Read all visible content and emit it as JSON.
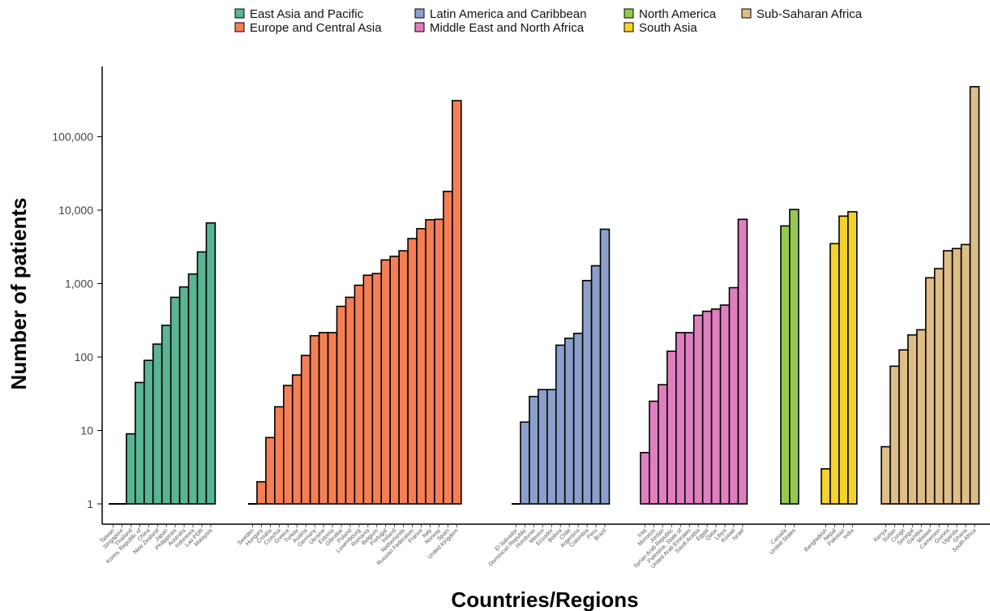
{
  "chart_data": {
    "type": "bar",
    "title": "",
    "xlabel": "Countries/Regions",
    "ylabel": "Number of patients",
    "y_scale": "log",
    "ylim": [
      1,
      700000
    ],
    "y_ticks": [
      1,
      10,
      100,
      1000,
      10000,
      100000
    ],
    "y_tick_labels": [
      "1",
      "10",
      "100",
      "1,000",
      "10,000",
      "100,000"
    ],
    "grid": false,
    "legend_position": "top",
    "legend": [
      {
        "name": "East Asia and Pacific",
        "color": "#5ab592"
      },
      {
        "name": "Europe and Central Asia",
        "color": "#f57f54"
      },
      {
        "name": "Latin America and Caribbean",
        "color": "#8b9fca"
      },
      {
        "name": "Middle East and North Africa",
        "color": "#e07fc0"
      },
      {
        "name": "North America",
        "color": "#95c94e"
      },
      {
        "name": "South Asia",
        "color": "#f5d32a"
      },
      {
        "name": "Sub-Saharan Africa",
        "color": "#debd87"
      }
    ],
    "series": [
      {
        "name": "East Asia and Pacific",
        "color": "#5ab592",
        "categories": [
          "Taiwan",
          "Singapore",
          "Thailand",
          "Korea, Republic of",
          "China",
          "New Zealand",
          "Japan",
          "Philippines",
          "Australia",
          "Indonesia",
          "Lao PDR",
          "Malaysia"
        ],
        "values": [
          1,
          1,
          9,
          45,
          90,
          150,
          270,
          650,
          900,
          1350,
          2700,
          6700
        ]
      },
      {
        "name": "Europe and Central Asia",
        "color": "#f57f54",
        "categories": [
          "Sweden",
          "Hungary",
          "Croatia",
          "Czechia",
          "Greece",
          "Turkey",
          "Austria",
          "Germany",
          "Ukraine",
          "Estonia",
          "Gibraltar",
          "Poland",
          "Luxembourg",
          "Romania",
          "Belgium",
          "Portugal",
          "Ireland",
          "Netherlands",
          "Russian Federation",
          "France",
          "Italy",
          "Norway",
          "Spain",
          "United Kingdom"
        ],
        "values": [
          1,
          2,
          8,
          21,
          41,
          57,
          105,
          195,
          215,
          215,
          490,
          650,
          950,
          1300,
          1370,
          2100,
          2350,
          2800,
          4100,
          5600,
          7400,
          7500,
          18000,
          310000
        ]
      },
      {
        "name": "Latin America and Caribbean",
        "color": "#8b9fca",
        "categories": [
          "El Salvador",
          "Dominican Republic",
          "Honduras",
          "Mexico",
          "Ecuador",
          "Bolivia",
          "Chile",
          "Argentina",
          "Colombia",
          "Peru",
          "Brazil"
        ],
        "values": [
          1,
          13,
          29,
          36,
          36,
          145,
          180,
          210,
          1100,
          1750,
          5500
        ]
      },
      {
        "name": "Middle East and North Africa",
        "color": "#e07fc0",
        "categories": [
          "Iraq",
          "Morocco",
          "Jordan",
          "Syrian Arab Republic",
          "Palestine, State of",
          "United Arab Emirates",
          "Saudi Arabia",
          "Egypt",
          "Qatar",
          "Libya",
          "Kuwait",
          "Israel"
        ],
        "values": [
          5,
          25,
          42,
          120,
          215,
          215,
          370,
          420,
          450,
          510,
          880,
          7500
        ]
      },
      {
        "name": "North America",
        "color": "#95c94e",
        "categories": [
          "Canada",
          "United States"
        ],
        "values": [
          6100,
          10200
        ]
      },
      {
        "name": "South Asia",
        "color": "#f5d32a",
        "categories": [
          "Bangladesh",
          "Nepal",
          "Pakistan",
          "India"
        ],
        "values": [
          3,
          3500,
          8300,
          9500
        ]
      },
      {
        "name": "Sub-Saharan Africa",
        "color": "#debd87",
        "categories": [
          "Kenya",
          "Sudan",
          "Congo",
          "Senegal",
          "Gambia",
          "Malawi",
          "Cameroon",
          "Guinea",
          "Uganda",
          "Ghana",
          "South Africa"
        ],
        "values": [
          6,
          75,
          125,
          200,
          235,
          1200,
          1600,
          2800,
          3000,
          3400,
          480000
        ]
      }
    ]
  }
}
